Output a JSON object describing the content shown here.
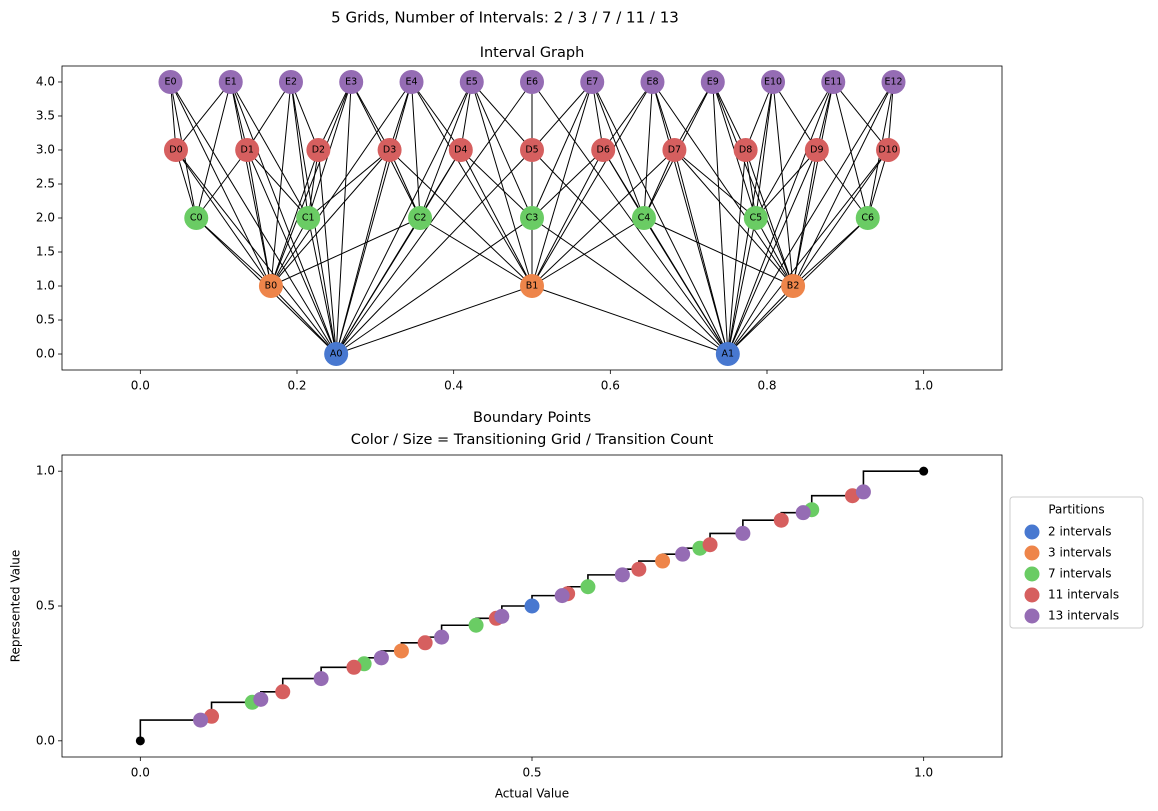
{
  "title": "5 Grids, Number of Intervals: 2 / 3 / 7 / 11 / 13",
  "chart_data": [
    {
      "type": "network",
      "title": "Interval Graph",
      "xlim": [
        -0.1,
        1.1
      ],
      "ylim": [
        -0.235,
        4.235
      ],
      "xticks": [
        {
          "value": 0,
          "label": "0.0"
        },
        {
          "value": 0.2,
          "label": "0.2"
        },
        {
          "value": 0.4,
          "label": "0.4"
        },
        {
          "value": 0.6,
          "label": "0.6"
        },
        {
          "value": 0.8,
          "label": "0.8"
        },
        {
          "value": 1,
          "label": "1.0"
        }
      ],
      "yticks": [
        {
          "value": 0,
          "label": "0.0"
        },
        0.5,
        {
          "value": 1,
          "label": "1.0"
        },
        1.5,
        {
          "value": 2,
          "label": "2.0"
        },
        2.5,
        {
          "value": 3,
          "label": "3.0"
        },
        3.5,
        {
          "value": 4,
          "label": "4.0"
        }
      ],
      "edge_color": "#000000",
      "nodes": [
        {
          "label": "A0",
          "x": 0.25,
          "y": 0,
          "color": "#4878d0"
        },
        {
          "label": "A1",
          "x": 0.75,
          "y": 0,
          "color": "#4878d0"
        },
        {
          "label": "B0",
          "x": 0.1667,
          "y": 1,
          "color": "#ee854a"
        },
        {
          "label": "B1",
          "x": 0.5,
          "y": 1,
          "color": "#ee854a"
        },
        {
          "label": "B2",
          "x": 0.8333,
          "y": 1,
          "color": "#ee854a"
        },
        {
          "label": "C0",
          "x": 0.0714,
          "y": 2,
          "color": "#6acc64"
        },
        {
          "label": "C1",
          "x": 0.2143,
          "y": 2,
          "color": "#6acc64"
        },
        {
          "label": "C2",
          "x": 0.3571,
          "y": 2,
          "color": "#6acc64"
        },
        {
          "label": "C3",
          "x": 0.5,
          "y": 2,
          "color": "#6acc64"
        },
        {
          "label": "C4",
          "x": 0.6429,
          "y": 2,
          "color": "#6acc64"
        },
        {
          "label": "C5",
          "x": 0.7857,
          "y": 2,
          "color": "#6acc64"
        },
        {
          "label": "C6",
          "x": 0.9286,
          "y": 2,
          "color": "#6acc64"
        },
        {
          "label": "D0",
          "x": 0.0455,
          "y": 3,
          "color": "#d65f5f"
        },
        {
          "label": "D1",
          "x": 0.1364,
          "y": 3,
          "color": "#d65f5f"
        },
        {
          "label": "D2",
          "x": 0.2273,
          "y": 3,
          "color": "#d65f5f"
        },
        {
          "label": "D3",
          "x": 0.3182,
          "y": 3,
          "color": "#d65f5f"
        },
        {
          "label": "D4",
          "x": 0.4091,
          "y": 3,
          "color": "#d65f5f"
        },
        {
          "label": "D5",
          "x": 0.5,
          "y": 3,
          "color": "#d65f5f"
        },
        {
          "label": "D6",
          "x": 0.5909,
          "y": 3,
          "color": "#d65f5f"
        },
        {
          "label": "D7",
          "x": 0.6818,
          "y": 3,
          "color": "#d65f5f"
        },
        {
          "label": "D8",
          "x": 0.7727,
          "y": 3,
          "color": "#d65f5f"
        },
        {
          "label": "D9",
          "x": 0.8636,
          "y": 3,
          "color": "#d65f5f"
        },
        {
          "label": "D10",
          "x": 0.9545,
          "y": 3,
          "color": "#d65f5f"
        },
        {
          "label": "E0",
          "x": 0.0385,
          "y": 4,
          "color": "#956cb4"
        },
        {
          "label": "E1",
          "x": 0.1154,
          "y": 4,
          "color": "#956cb4"
        },
        {
          "label": "E2",
          "x": 0.1923,
          "y": 4,
          "color": "#956cb4"
        },
        {
          "label": "E3",
          "x": 0.2692,
          "y": 4,
          "color": "#956cb4"
        },
        {
          "label": "E4",
          "x": 0.3462,
          "y": 4,
          "color": "#956cb4"
        },
        {
          "label": "E5",
          "x": 0.4231,
          "y": 4,
          "color": "#956cb4"
        },
        {
          "label": "E6",
          "x": 0.5,
          "y": 4,
          "color": "#956cb4"
        },
        {
          "label": "E7",
          "x": 0.5769,
          "y": 4,
          "color": "#956cb4"
        },
        {
          "label": "E8",
          "x": 0.6538,
          "y": 4,
          "color": "#956cb4"
        },
        {
          "label": "E9",
          "x": 0.7308,
          "y": 4,
          "color": "#956cb4"
        },
        {
          "label": "E10",
          "x": 0.8077,
          "y": 4,
          "color": "#956cb4"
        },
        {
          "label": "E11",
          "x": 0.8846,
          "y": 4,
          "color": "#956cb4"
        },
        {
          "label": "E12",
          "x": 0.9615,
          "y": 4,
          "color": "#956cb4"
        }
      ],
      "edges": [
        [
          0,
          2
        ],
        [
          0,
          3
        ],
        [
          1,
          3
        ],
        [
          1,
          4
        ],
        [
          0,
          5
        ],
        [
          0,
          6
        ],
        [
          0,
          7
        ],
        [
          0,
          8
        ],
        [
          1,
          8
        ],
        [
          1,
          9
        ],
        [
          1,
          10
        ],
        [
          1,
          11
        ],
        [
          0,
          12
        ],
        [
          0,
          13
        ],
        [
          0,
          14
        ],
        [
          0,
          15
        ],
        [
          0,
          16
        ],
        [
          0,
          17
        ],
        [
          1,
          17
        ],
        [
          1,
          18
        ],
        [
          1,
          19
        ],
        [
          1,
          20
        ],
        [
          1,
          21
        ],
        [
          1,
          22
        ],
        [
          0,
          23
        ],
        [
          0,
          24
        ],
        [
          0,
          25
        ],
        [
          0,
          26
        ],
        [
          0,
          27
        ],
        [
          0,
          28
        ],
        [
          0,
          29
        ],
        [
          1,
          29
        ],
        [
          1,
          30
        ],
        [
          1,
          31
        ],
        [
          1,
          32
        ],
        [
          1,
          33
        ],
        [
          1,
          34
        ],
        [
          1,
          35
        ],
        [
          2,
          5
        ],
        [
          2,
          6
        ],
        [
          2,
          7
        ],
        [
          3,
          7
        ],
        [
          3,
          8
        ],
        [
          3,
          9
        ],
        [
          4,
          9
        ],
        [
          4,
          10
        ],
        [
          4,
          11
        ],
        [
          2,
          12
        ],
        [
          2,
          13
        ],
        [
          2,
          14
        ],
        [
          2,
          15
        ],
        [
          3,
          15
        ],
        [
          3,
          16
        ],
        [
          3,
          17
        ],
        [
          3,
          18
        ],
        [
          3,
          19
        ],
        [
          4,
          19
        ],
        [
          4,
          20
        ],
        [
          4,
          21
        ],
        [
          4,
          22
        ],
        [
          2,
          23
        ],
        [
          2,
          24
        ],
        [
          2,
          25
        ],
        [
          2,
          26
        ],
        [
          2,
          27
        ],
        [
          3,
          27
        ],
        [
          3,
          28
        ],
        [
          3,
          29
        ],
        [
          3,
          30
        ],
        [
          3,
          31
        ],
        [
          4,
          31
        ],
        [
          4,
          32
        ],
        [
          4,
          33
        ],
        [
          4,
          34
        ],
        [
          4,
          35
        ],
        [
          5,
          12
        ],
        [
          5,
          13
        ],
        [
          6,
          13
        ],
        [
          6,
          14
        ],
        [
          6,
          15
        ],
        [
          7,
          15
        ],
        [
          7,
          16
        ],
        [
          8,
          16
        ],
        [
          8,
          17
        ],
        [
          8,
          18
        ],
        [
          9,
          18
        ],
        [
          9,
          19
        ],
        [
          10,
          19
        ],
        [
          10,
          20
        ],
        [
          10,
          21
        ],
        [
          11,
          21
        ],
        [
          11,
          22
        ],
        [
          5,
          23
        ],
        [
          5,
          24
        ],
        [
          6,
          24
        ],
        [
          6,
          25
        ],
        [
          6,
          26
        ],
        [
          7,
          26
        ],
        [
          7,
          27
        ],
        [
          7,
          28
        ],
        [
          8,
          28
        ],
        [
          8,
          29
        ],
        [
          8,
          30
        ],
        [
          9,
          30
        ],
        [
          9,
          31
        ],
        [
          9,
          32
        ],
        [
          10,
          32
        ],
        [
          10,
          33
        ],
        [
          10,
          34
        ],
        [
          11,
          34
        ],
        [
          11,
          35
        ],
        [
          12,
          23
        ],
        [
          12,
          24
        ],
        [
          13,
          24
        ],
        [
          13,
          25
        ],
        [
          14,
          25
        ],
        [
          14,
          26
        ],
        [
          15,
          26
        ],
        [
          15,
          27
        ],
        [
          16,
          27
        ],
        [
          16,
          28
        ],
        [
          17,
          28
        ],
        [
          17,
          29
        ],
        [
          17,
          30
        ],
        [
          18,
          30
        ],
        [
          18,
          31
        ],
        [
          19,
          31
        ],
        [
          19,
          32
        ],
        [
          20,
          32
        ],
        [
          20,
          33
        ],
        [
          21,
          33
        ],
        [
          21,
          34
        ],
        [
          22,
          34
        ],
        [
          22,
          35
        ]
      ]
    },
    {
      "type": "scatter",
      "title": "Boundary Points",
      "subtitle": "Color / Size = Transitioning Grid / Transition Count",
      "xlabel": "Actual Value",
      "ylabel": "Represented Value",
      "xlim": [
        -0.1,
        1.1
      ],
      "ylim": [
        -0.06,
        1.06
      ],
      "xticks": [
        {
          "value": 0,
          "label": "0.0"
        },
        0.5,
        {
          "value": 1,
          "label": "1.0"
        }
      ],
      "yticks": [
        {
          "value": 0,
          "label": "0.0"
        },
        0.5,
        {
          "value": 1,
          "label": "1.0"
        }
      ],
      "legend": "right",
      "legend_title": "Partitions",
      "steps": {
        "color": "#000000",
        "step": "pre",
        "x": [
          0,
          0.0769,
          0.0909,
          0.1429,
          0.1538,
          0.1818,
          0.2308,
          0.2727,
          0.2857,
          0.3077,
          0.3333,
          0.3636,
          0.3846,
          0.4286,
          0.4545,
          0.4615,
          0.5,
          0.5385,
          0.5455,
          0.5714,
          0.6154,
          0.6364,
          0.6667,
          0.6923,
          0.7143,
          0.7273,
          0.7692,
          0.8182,
          0.8462,
          0.8571,
          0.9091,
          0.9231,
          1
        ],
        "y": [
          0,
          0.0769,
          0.0909,
          0.1429,
          0.1538,
          0.1818,
          0.2308,
          0.2727,
          0.2857,
          0.3077,
          0.3333,
          0.3636,
          0.3846,
          0.4286,
          0.4545,
          0.4615,
          0.5,
          0.5385,
          0.5455,
          0.5714,
          0.6154,
          0.6364,
          0.6667,
          0.6923,
          0.7143,
          0.7273,
          0.7692,
          0.8182,
          0.8462,
          0.8571,
          0.9091,
          0.9231,
          1
        ]
      },
      "endpoints": {
        "color": "#000000",
        "x": [
          0,
          1
        ],
        "y": [
          0,
          1
        ]
      },
      "series": [
        {
          "name": "2 intervals",
          "color": "#4878d0",
          "x": [
            0.5
          ],
          "y": [
            0.5
          ]
        },
        {
          "name": "3 intervals",
          "color": "#ee854a",
          "x": [
            0.3333,
            0.6667
          ],
          "y": [
            0.3333,
            0.6667
          ]
        },
        {
          "name": "7 intervals",
          "color": "#6acc64",
          "x": [
            0.1429,
            0.2857,
            0.4286,
            0.5714,
            0.7143,
            0.8571
          ],
          "y": [
            0.1429,
            0.2857,
            0.4286,
            0.5714,
            0.7143,
            0.8571
          ]
        },
        {
          "name": "11 intervals",
          "color": "#d65f5f",
          "x": [
            0.0909,
            0.1818,
            0.2727,
            0.3636,
            0.4545,
            0.5455,
            0.6364,
            0.7273,
            0.8182,
            0.9091
          ],
          "y": [
            0.0909,
            0.1818,
            0.2727,
            0.3636,
            0.4545,
            0.5455,
            0.6364,
            0.7273,
            0.8182,
            0.9091
          ]
        },
        {
          "name": "13 intervals",
          "color": "#956cb4",
          "x": [
            0.0769,
            0.1538,
            0.2308,
            0.3077,
            0.3846,
            0.4615,
            0.5385,
            0.6154,
            0.6923,
            0.7692,
            0.8462,
            0.9231
          ],
          "y": [
            0.0769,
            0.1538,
            0.2308,
            0.3077,
            0.3846,
            0.4615,
            0.5385,
            0.6154,
            0.6923,
            0.7692,
            0.8462,
            0.9231
          ]
        }
      ]
    }
  ]
}
